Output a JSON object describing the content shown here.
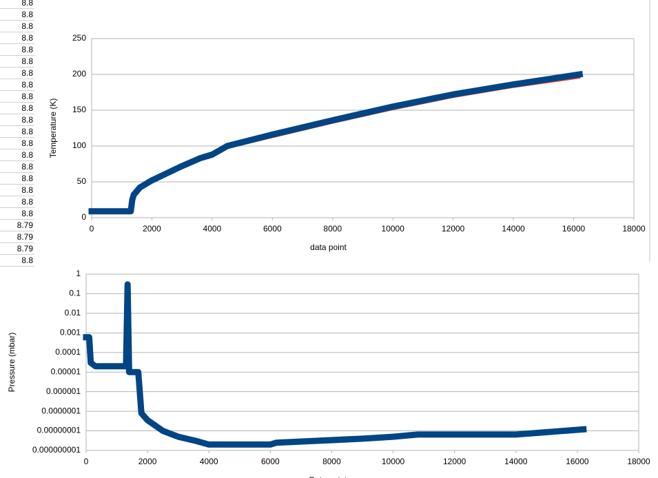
{
  "cells": [
    "8.8",
    "8.8",
    "8.8",
    "8.8",
    "8.8",
    "8.8",
    "8.8",
    "8.8",
    "8.8",
    "8.8",
    "8.8",
    "8.8",
    "8.8",
    "8.8",
    "8.8",
    "8.8",
    "8.8",
    "8.8",
    "8.8",
    "8.79",
    "8.79",
    "8.79",
    "8.8"
  ],
  "chart_data": [
    {
      "type": "scatter",
      "xlabel": "data point",
      "ylabel": "Temperature (K)",
      "xlim": [
        0,
        18000
      ],
      "xticks": [
        0,
        2000,
        4000,
        6000,
        8000,
        10000,
        12000,
        14000,
        16000,
        18000
      ],
      "ylim": [
        0,
        250
      ],
      "yticks": [
        0,
        50,
        100,
        150,
        200,
        250
      ],
      "grid": true,
      "x": [
        0,
        1300,
        1350,
        1400,
        1600,
        2000,
        3000,
        3600,
        4000,
        4500,
        6000,
        8000,
        10000,
        12000,
        14000,
        16200
      ],
      "series": [
        {
          "name": "",
          "color": "#e8492a",
          "values": [
            8.8,
            8.8,
            24,
            30,
            40,
            50,
            70,
            81,
            86,
            97,
            112,
            132,
            151,
            168,
            182,
            195
          ]
        },
        {
          "name": "",
          "color": "#004586",
          "values": [
            8.8,
            8.8,
            25,
            32,
            42,
            52,
            72,
            83,
            88,
            100,
            116,
            136,
            155,
            172,
            186,
            200
          ]
        }
      ]
    },
    {
      "type": "scatter",
      "xlabel": "Data point",
      "ylabel": "Pressure (mbar)",
      "log_y": true,
      "xlim": [
        0,
        18000
      ],
      "xticks": [
        0,
        2000,
        4000,
        6000,
        8000,
        10000,
        12000,
        14000,
        16000,
        18000
      ],
      "ylim": [
        1e-09,
        1
      ],
      "yticks": [
        1,
        0.1,
        0.01,
        0.001,
        0.0001,
        1e-05,
        1e-06,
        {
          "value": 1e-07,
          "label": "0.0000001"
        },
        {
          "value": 1e-08,
          "label": "0.00000001"
        },
        {
          "value": 1e-09,
          "label": "0.000000001"
        }
      ],
      "grid": true,
      "x": [
        0,
        100,
        150,
        300,
        1300,
        1350,
        1400,
        1700,
        1800,
        2000,
        2500,
        3000,
        3600,
        4000,
        6000,
        6200,
        9000,
        10000,
        10800,
        14000,
        16200
      ],
      "series": [
        {
          "name": "",
          "color": "#004586",
          "values": [
            0.0006,
            0.0006,
            3e-05,
            2e-05,
            2e-05,
            0.3,
            1e-05,
            1e-05,
            8e-08,
            3.5e-08,
            1e-08,
            5e-09,
            3e-09,
            2e-09,
            2e-09,
            2.5e-09,
            4e-09,
            5e-09,
            6.5e-09,
            6.5e-09,
            1.2e-08
          ]
        }
      ]
    }
  ]
}
